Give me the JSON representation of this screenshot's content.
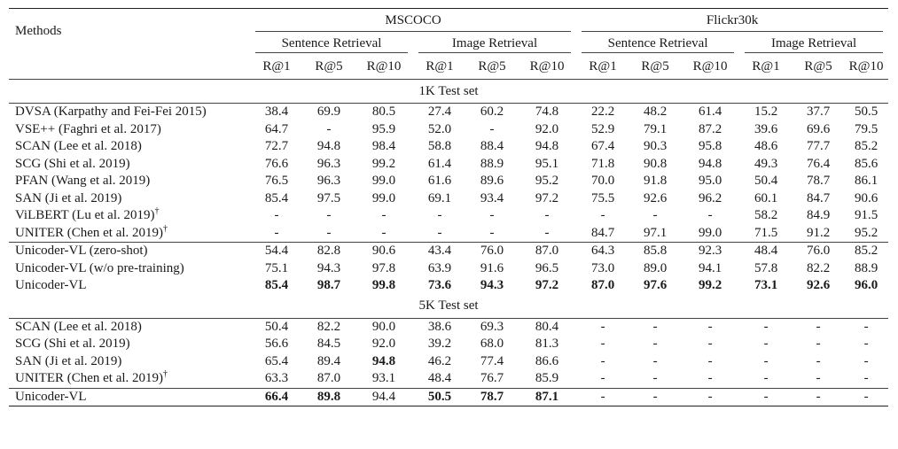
{
  "header": {
    "methods": "Methods",
    "datasets": [
      "MSCOCO",
      "Flickr30k"
    ],
    "tasks": [
      "Sentence Retrieval",
      "Image Retrieval",
      "Sentence Retrieval",
      "Image Retrieval"
    ],
    "metrics": [
      "R@1",
      "R@5",
      "R@10",
      "R@1",
      "R@5",
      "R@10",
      "R@1",
      "R@5",
      "R@10",
      "R@1",
      "R@5",
      "R@10"
    ]
  },
  "sections": [
    {
      "title": "1K Test set",
      "groups": [
        {
          "rows": [
            {
              "method": "DVSA (Karpathy and Fei-Fei 2015)",
              "dagger": "",
              "values": [
                "38.4",
                "69.9",
                "80.5",
                "27.4",
                "60.2",
                "74.8",
                "22.2",
                "48.2",
                "61.4",
                "15.2",
                "37.7",
                "50.5"
              ],
              "bold": []
            },
            {
              "method": "VSE++ (Faghri et al. 2017)",
              "dagger": "",
              "values": [
                "64.7",
                "-",
                "95.9",
                "52.0",
                "-",
                "92.0",
                "52.9",
                "79.1",
                "87.2",
                "39.6",
                "69.6",
                "79.5"
              ],
              "bold": []
            },
            {
              "method": "SCAN (Lee et al. 2018)",
              "dagger": "",
              "values": [
                "72.7",
                "94.8",
                "98.4",
                "58.8",
                "88.4",
                "94.8",
                "67.4",
                "90.3",
                "95.8",
                "48.6",
                "77.7",
                "85.2"
              ],
              "bold": []
            },
            {
              "method": "SCG (Shi et al. 2019)",
              "dagger": "",
              "values": [
                "76.6",
                "96.3",
                "99.2",
                "61.4",
                "88.9",
                "95.1",
                "71.8",
                "90.8",
                "94.8",
                "49.3",
                "76.4",
                "85.6"
              ],
              "bold": []
            },
            {
              "method": "PFAN (Wang et al. 2019)",
              "dagger": "",
              "values": [
                "76.5",
                "96.3",
                "99.0",
                "61.6",
                "89.6",
                "95.2",
                "70.0",
                "91.8",
                "95.0",
                "50.4",
                "78.7",
                "86.1"
              ],
              "bold": []
            },
            {
              "method": "SAN (Ji et al. 2019)",
              "dagger": "",
              "values": [
                "85.4",
                "97.5",
                "99.0",
                "69.1",
                "93.4",
                "97.2",
                "75.5",
                "92.6",
                "96.2",
                "60.1",
                "84.7",
                "90.6"
              ],
              "bold": []
            },
            {
              "method": "ViLBERT (Lu et al. 2019)",
              "dagger": "†",
              "values": [
                "-",
                "-",
                "-",
                "-",
                "-",
                "-",
                "-",
                "-",
                "-",
                "58.2",
                "84.9",
                "91.5"
              ],
              "bold": []
            },
            {
              "method": "UNITER (Chen et al. 2019)",
              "dagger": "†",
              "values": [
                "-",
                "-",
                "-",
                "-",
                "-",
                "-",
                "84.7",
                "97.1",
                "99.0",
                "71.5",
                "91.2",
                "95.2"
              ],
              "bold": []
            }
          ]
        },
        {
          "rows": [
            {
              "method": "Unicoder-VL (zero-shot)",
              "dagger": "",
              "values": [
                "54.4",
                "82.8",
                "90.6",
                "43.4",
                "76.0",
                "87.0",
                "64.3",
                "85.8",
                "92.3",
                "48.4",
                "76.0",
                "85.2"
              ],
              "bold": []
            },
            {
              "method": "Unicoder-VL (w/o pre-training)",
              "dagger": "",
              "values": [
                "75.1",
                "94.3",
                "97.8",
                "63.9",
                "91.6",
                "96.5",
                "73.0",
                "89.0",
                "94.1",
                "57.8",
                "82.2",
                "88.9"
              ],
              "bold": []
            },
            {
              "method": "Unicoder-VL",
              "dagger": "",
              "values": [
                "85.4",
                "98.7",
                "99.8",
                "73.6",
                "94.3",
                "97.2",
                "87.0",
                "97.6",
                "99.2",
                "73.1",
                "92.6",
                "96.0"
              ],
              "bold": [
                0,
                1,
                2,
                3,
                4,
                5,
                6,
                7,
                8,
                9,
                10,
                11
              ]
            }
          ]
        }
      ]
    },
    {
      "title": "5K Test set",
      "groups": [
        {
          "rows": [
            {
              "method": "SCAN (Lee et al. 2018)",
              "dagger": "",
              "values": [
                "50.4",
                "82.2",
                "90.0",
                "38.6",
                "69.3",
                "80.4",
                "-",
                "-",
                "-",
                "-",
                "-",
                "-"
              ],
              "bold": []
            },
            {
              "method": "SCG (Shi et al. 2019)",
              "dagger": "",
              "values": [
                "56.6",
                "84.5",
                "92.0",
                "39.2",
                "68.0",
                "81.3",
                "-",
                "-",
                "-",
                "-",
                "-",
                "-"
              ],
              "bold": []
            },
            {
              "method": "SAN (Ji et al. 2019)",
              "dagger": "",
              "values": [
                "65.4",
                "89.4",
                "94.8",
                "46.2",
                "77.4",
                "86.6",
                "-",
                "-",
                "-",
                "-",
                "-",
                "-"
              ],
              "bold": [
                2
              ]
            },
            {
              "method": "UNITER (Chen et al. 2019)",
              "dagger": "†",
              "values": [
                "63.3",
                "87.0",
                "93.1",
                "48.4",
                "76.7",
                "85.9",
                "-",
                "-",
                "-",
                "-",
                "-",
                "-"
              ],
              "bold": []
            }
          ]
        },
        {
          "rows": [
            {
              "method": "Unicoder-VL",
              "dagger": "",
              "values": [
                "66.4",
                "89.8",
                "94.4",
                "50.5",
                "78.7",
                "87.1",
                "-",
                "-",
                "-",
                "-",
                "-",
                "-"
              ],
              "bold": [
                0,
                1,
                3,
                4,
                5
              ]
            }
          ]
        }
      ]
    }
  ]
}
